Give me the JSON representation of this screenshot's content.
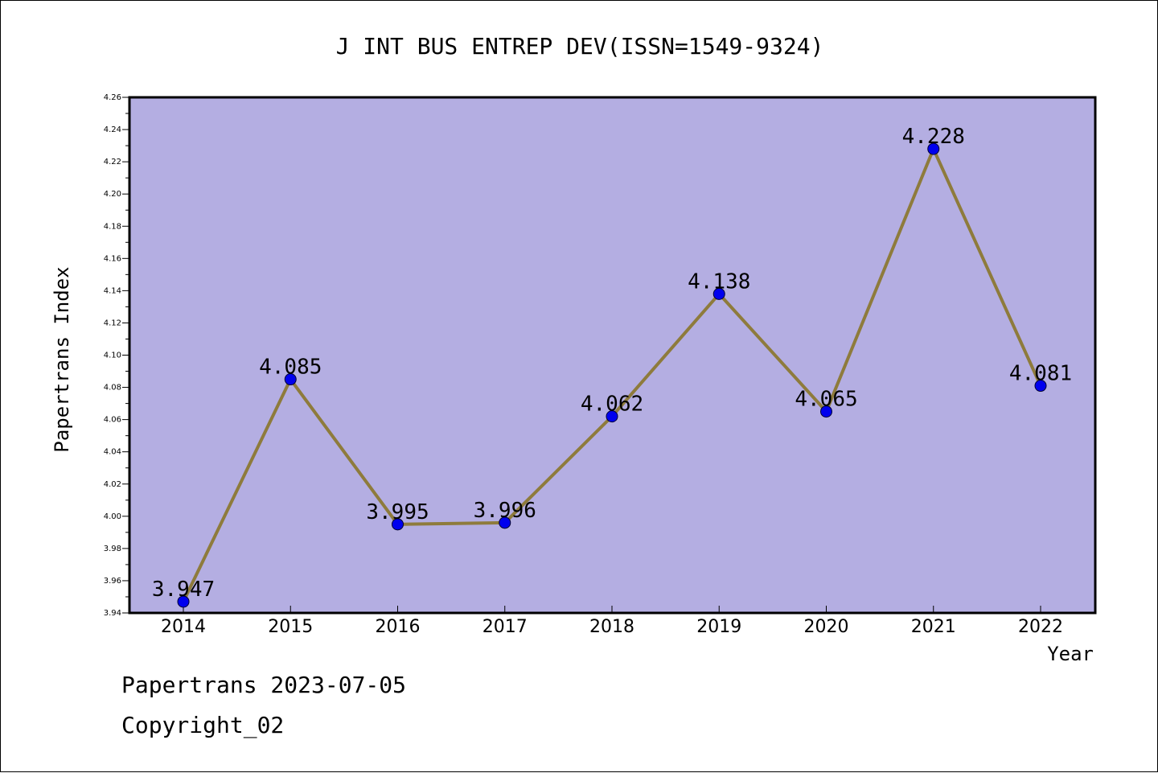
{
  "chart_data": {
    "type": "line",
    "title": "J INT BUS ENTREP DEV(ISSN=1549-9324)",
    "xlabel": "Year",
    "ylabel": "Papertrans Index",
    "categories": [
      "2014",
      "2015",
      "2016",
      "2017",
      "2018",
      "2019",
      "2020",
      "2021",
      "2022"
    ],
    "values": [
      3.947,
      4.085,
      3.995,
      3.996,
      4.062,
      4.138,
      4.065,
      4.228,
      4.081
    ],
    "data_labels": [
      "3.947",
      "4.085",
      "3.995",
      "3.996",
      "4.062",
      "4.138",
      "4.065",
      "4.228",
      "4.081"
    ],
    "ylim": [
      3.94,
      4.26
    ],
    "yticks": [
      "3.94",
      "3.96",
      "3.98",
      "4.00",
      "4.02",
      "4.04",
      "4.06",
      "4.08",
      "4.10",
      "4.12",
      "4.14",
      "4.16",
      "4.18",
      "4.20",
      "4.22",
      "4.24",
      "4.26"
    ],
    "grid": false,
    "colors": {
      "plot_background": "#b4aee2",
      "line": "#8e7b3c",
      "marker": "#0000ee"
    }
  },
  "footer": {
    "line1": "Papertrans 2023-07-05",
    "line2": "Copyright_02"
  }
}
